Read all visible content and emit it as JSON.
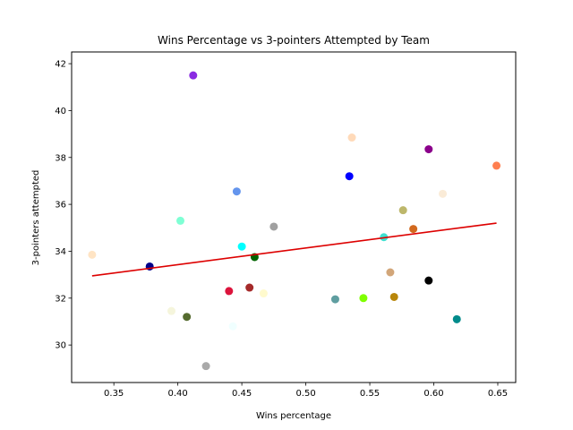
{
  "chart_data": {
    "type": "scatter",
    "title": "Wins Percentage vs 3-pointers Attempted by Team",
    "xlabel": "Wins percentage",
    "ylabel": "3-pointers attempted",
    "xlim": [
      0.317,
      0.664
    ],
    "ylim": [
      28.4,
      42.5
    ],
    "xticks": [
      "0.35",
      "0.40",
      "0.45",
      "0.50",
      "0.55",
      "0.60",
      "0.65"
    ],
    "xtick_values": [
      0.35,
      0.4,
      0.45,
      0.5,
      0.55,
      0.6,
      0.65
    ],
    "yticks": [
      "30",
      "32",
      "34",
      "36",
      "38",
      "40",
      "42"
    ],
    "ytick_values": [
      30,
      32,
      34,
      36,
      38,
      40,
      42
    ],
    "grid": false,
    "points": [
      {
        "x": 0.333,
        "y": 33.85,
        "color": "#ffe4c4"
      },
      {
        "x": 0.378,
        "y": 33.35,
        "color": "#00008b"
      },
      {
        "x": 0.395,
        "y": 31.45,
        "color": "#f5f5dc"
      },
      {
        "x": 0.402,
        "y": 35.3,
        "color": "#7fffd4"
      },
      {
        "x": 0.407,
        "y": 31.2,
        "color": "#556b2f"
      },
      {
        "x": 0.412,
        "y": 41.5,
        "color": "#8a2be2"
      },
      {
        "x": 0.422,
        "y": 29.1,
        "color": "#a9a9a9"
      },
      {
        "x": 0.44,
        "y": 32.3,
        "color": "#dc143c"
      },
      {
        "x": 0.443,
        "y": 30.8,
        "color": "#f0ffff"
      },
      {
        "x": 0.446,
        "y": 36.55,
        "color": "#6495ed"
      },
      {
        "x": 0.45,
        "y": 34.2,
        "color": "#00ffff"
      },
      {
        "x": 0.456,
        "y": 32.45,
        "color": "#a52a2a"
      },
      {
        "x": 0.46,
        "y": 33.75,
        "color": "#006400"
      },
      {
        "x": 0.467,
        "y": 32.2,
        "color": "#fffacd"
      },
      {
        "x": 0.475,
        "y": 35.05,
        "color": "#a0a0a0"
      },
      {
        "x": 0.523,
        "y": 31.95,
        "color": "#5f9ea0"
      },
      {
        "x": 0.534,
        "y": 37.2,
        "color": "#0000ff"
      },
      {
        "x": 0.536,
        "y": 38.85,
        "color": "#ffdab9"
      },
      {
        "x": 0.545,
        "y": 32.0,
        "color": "#7fff00"
      },
      {
        "x": 0.561,
        "y": 34.6,
        "color": "#40e0d0"
      },
      {
        "x": 0.566,
        "y": 33.1,
        "color": "#d2a679"
      },
      {
        "x": 0.569,
        "y": 32.05,
        "color": "#b8860b"
      },
      {
        "x": 0.576,
        "y": 35.75,
        "color": "#bdb76b"
      },
      {
        "x": 0.584,
        "y": 34.95,
        "color": "#d2691e"
      },
      {
        "x": 0.596,
        "y": 32.75,
        "color": "#000000"
      },
      {
        "x": 0.596,
        "y": 38.35,
        "color": "#8b008b"
      },
      {
        "x": 0.607,
        "y": 36.45,
        "color": "#faebd7"
      },
      {
        "x": 0.618,
        "y": 31.1,
        "color": "#008b8b"
      },
      {
        "x": 0.649,
        "y": 37.65,
        "color": "#ff7f50"
      }
    ],
    "trendline": {
      "x": [
        0.333,
        0.649
      ],
      "y": [
        32.95,
        35.2
      ],
      "color": "#dd0000"
    }
  }
}
